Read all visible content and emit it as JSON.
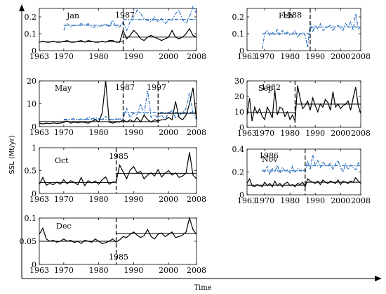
{
  "ylabel": "SSL (Mt/yr)",
  "xlabel": "Time",
  "panels": [
    {
      "month": "Jan",
      "x": [
        1963,
        1964,
        1965,
        1966,
        1967,
        1968,
        1969,
        1970,
        1971,
        1972,
        1973,
        1974,
        1975,
        1976,
        1977,
        1978,
        1979,
        1980,
        1981,
        1982,
        1983,
        1984,
        1985,
        1986,
        1987,
        1988,
        1989,
        1990,
        1991,
        1992,
        1993,
        1994,
        1995,
        1996,
        1997,
        1998,
        1999,
        2000,
        2001,
        2002,
        2003,
        2004,
        2005,
        2006,
        2007,
        2008
      ],
      "ylim": [
        0,
        0.25
      ],
      "yticks": [
        0,
        0.1,
        0.2
      ],
      "xticks": [
        1963,
        1970,
        1980,
        1990,
        2000,
        2008
      ],
      "solid": [
        0.05,
        0.055,
        0.05,
        0.05,
        0.055,
        0.05,
        0.05,
        0.055,
        0.06,
        0.05,
        0.05,
        0.055,
        0.06,
        0.05,
        0.06,
        0.055,
        0.05,
        0.05,
        0.055,
        0.05,
        0.06,
        0.06,
        0.05,
        0.05,
        0.12,
        0.07,
        0.09,
        0.12,
        0.1,
        0.07,
        0.06,
        0.08,
        0.09,
        0.08,
        0.07,
        0.06,
        0.07,
        0.08,
        0.12,
        0.08,
        0.07,
        0.08,
        0.1,
        0.13,
        0.09,
        0.08
      ],
      "solid_mean": [
        [
          1963,
          1987,
          0.052
        ],
        [
          1987,
          2008,
          0.08
        ]
      ],
      "dashdot": [
        null,
        null,
        null,
        null,
        null,
        null,
        null,
        0.12,
        0.16,
        0.14,
        0.15,
        0.15,
        0.16,
        0.15,
        0.16,
        0.14,
        0.14,
        0.14,
        0.15,
        0.16,
        0.14,
        0.18,
        0.14,
        0.14,
        0.17,
        0.12,
        0.17,
        0.2,
        0.24,
        0.22,
        0.19,
        0.18,
        0.17,
        0.2,
        0.17,
        0.19,
        0.16,
        0.18,
        0.18,
        0.22,
        0.24,
        0.18,
        0.16,
        0.2,
        0.26,
        0.22
      ],
      "dashdot_mean": [
        [
          1970,
          1987,
          0.15
        ],
        [
          1987,
          2008,
          0.185
        ]
      ],
      "breaks": [
        {
          "year": 1987,
          "label": "1987"
        }
      ]
    },
    {
      "month": "Feb",
      "x": [
        1963,
        1964,
        1965,
        1966,
        1967,
        1968,
        1969,
        1970,
        1971,
        1972,
        1973,
        1974,
        1975,
        1976,
        1977,
        1978,
        1979,
        1980,
        1981,
        1982,
        1983,
        1984,
        1985,
        1986,
        1987,
        1988,
        1989,
        1990,
        1991,
        1992,
        1993,
        1994,
        1995,
        1996,
        1997,
        1998,
        1999,
        2000,
        2001,
        2002,
        2003,
        2004,
        2005,
        2006,
        2007,
        2008
      ],
      "ylim": [
        0,
        0.25
      ],
      "yticks": [
        0,
        0.1,
        0.2
      ],
      "xticks": [
        1963,
        1970,
        1980,
        1990,
        2000,
        2008
      ],
      "solid": [],
      "solid_mean": [],
      "dashdot": [
        null,
        null,
        null,
        null,
        null,
        null,
        0.01,
        0.1,
        0.12,
        0.09,
        0.11,
        0.09,
        0.13,
        0.09,
        0.12,
        0.1,
        0.11,
        0.09,
        0.1,
        0.12,
        0.08,
        0.1,
        0.11,
        0.09,
        0.02,
        0.17,
        0.11,
        0.15,
        0.13,
        0.16,
        0.12,
        0.13,
        0.14,
        0.15,
        0.12,
        0.14,
        0.15,
        0.13,
        0.12,
        0.16,
        0.14,
        0.17,
        0.12,
        0.22,
        0.13,
        0.14
      ],
      "dashdot_mean": [
        [
          1969,
          1988,
          0.1
        ],
        [
          1988,
          2008,
          0.14
        ]
      ],
      "breaks": [
        {
          "year": 1988,
          "label": "1988"
        }
      ]
    },
    {
      "month": "May",
      "x": [
        1963,
        1964,
        1965,
        1966,
        1967,
        1968,
        1969,
        1970,
        1971,
        1972,
        1973,
        1974,
        1975,
        1976,
        1977,
        1978,
        1979,
        1980,
        1981,
        1982,
        1983,
        1984,
        1985,
        1986,
        1987,
        1988,
        1989,
        1990,
        1991,
        1992,
        1993,
        1994,
        1995,
        1996,
        1997,
        1998,
        1999,
        2000,
        2001,
        2002,
        2003,
        2004,
        2005,
        2006,
        2007,
        2008
      ],
      "ylim": [
        0,
        20
      ],
      "yticks": [
        0,
        10,
        20
      ],
      "xticks": [
        1963,
        1970,
        1980,
        1990,
        2000,
        2008
      ],
      "solid": [
        1.5,
        1.2,
        1.5,
        1.3,
        1.6,
        1.4,
        1.5,
        1.8,
        2.5,
        1.5,
        2,
        1.6,
        2,
        1.8,
        1.5,
        2.2,
        3,
        2,
        6,
        20,
        2,
        1.5,
        2,
        2,
        3,
        2,
        3,
        2,
        4,
        2,
        5,
        3,
        2,
        3,
        2.5,
        3,
        3,
        4,
        3,
        11,
        4,
        3,
        5,
        10,
        17,
        3
      ],
      "solid_mean": [
        [
          1963,
          1997,
          2.2
        ],
        [
          1997,
          2008,
          5.8
        ]
      ],
      "dashdot": [
        null,
        null,
        null,
        null,
        null,
        null,
        null,
        2.8,
        3,
        3.2,
        3.5,
        2.8,
        3.5,
        3,
        4,
        3.5,
        3.8,
        3.6,
        3,
        4.5,
        3.2,
        3,
        3.5,
        3.3,
        3.6,
        8,
        4,
        6,
        5,
        10,
        5,
        16,
        4,
        5,
        4,
        5,
        3,
        6,
        7,
        4,
        5,
        6,
        8,
        15,
        6,
        3
      ],
      "dashdot_mean": [
        [
          1970,
          1987,
          3.2
        ],
        [
          1987,
          2008,
          6.2
        ]
      ],
      "breaks": [
        {
          "year": 1987,
          "label": "1987"
        },
        {
          "year": 1997,
          "label": "1997"
        }
      ]
    },
    {
      "month": "Sep",
      "x": [
        1963,
        1964,
        1965,
        1966,
        1967,
        1968,
        1969,
        1970,
        1971,
        1972,
        1973,
        1974,
        1975,
        1976,
        1977,
        1978,
        1979,
        1980,
        1981,
        1982,
        1983,
        1984,
        1985,
        1986,
        1987,
        1988,
        1989,
        1990,
        1991,
        1992,
        1993,
        1994,
        1995,
        1996,
        1997,
        1998,
        1999,
        2000,
        2001,
        2002,
        2003,
        2004,
        2005,
        2006,
        2007,
        2008
      ],
      "ylim": [
        0,
        30
      ],
      "yticks": [
        0,
        10,
        20,
        30
      ],
      "xticks": [
        1963,
        1970,
        1980,
        1990,
        2000,
        2008
      ],
      "solid": [
        8,
        19,
        4,
        13,
        9,
        12,
        7,
        5,
        13,
        10,
        6,
        24,
        8,
        13,
        12,
        7,
        10,
        5,
        8,
        4,
        27,
        19,
        12,
        14,
        17,
        11,
        19,
        14,
        10,
        15,
        13,
        18,
        16,
        11,
        23,
        13,
        15,
        12,
        14,
        15,
        17,
        11,
        19,
        26,
        14,
        9
      ],
      "solid_mean": [
        [
          1963,
          1982,
          9.5
        ],
        [
          1982,
          2008,
          15
        ]
      ],
      "dashdot": [],
      "dashdot_mean": [],
      "breaks": [
        {
          "year": 1982,
          "label": "1982"
        }
      ]
    },
    {
      "month": "Oct",
      "x": [
        1963,
        1964,
        1965,
        1966,
        1967,
        1968,
        1969,
        1970,
        1971,
        1972,
        1973,
        1974,
        1975,
        1976,
        1977,
        1978,
        1979,
        1980,
        1981,
        1982,
        1983,
        1984,
        1985,
        1986,
        1987,
        1988,
        1989,
        1990,
        1991,
        1992,
        1993,
        1994,
        1995,
        1996,
        1997,
        1998,
        1999,
        2000,
        2001,
        2002,
        2003,
        2004,
        2005,
        2006,
        2007,
        2008
      ],
      "ylim": [
        0,
        1
      ],
      "yticks": [
        0,
        0.5,
        1
      ],
      "xticks": [
        1963,
        1970,
        1980,
        1990,
        2000,
        2008
      ],
      "solid": [
        0.2,
        0.35,
        0.18,
        0.22,
        0.19,
        0.25,
        0.2,
        0.3,
        0.21,
        0.28,
        0.24,
        0.19,
        0.35,
        0.17,
        0.28,
        0.23,
        0.27,
        0.2,
        0.3,
        0.36,
        0.2,
        0.25,
        0.25,
        0.62,
        0.47,
        0.32,
        0.51,
        0.59,
        0.45,
        0.48,
        0.32,
        0.4,
        0.45,
        0.38,
        0.52,
        0.36,
        0.44,
        0.5,
        0.4,
        0.45,
        0.35,
        0.38,
        0.45,
        0.9,
        0.4,
        0.32
      ],
      "solid_mean": [
        [
          1963,
          1985,
          0.24
        ],
        [
          1985,
          2008,
          0.44
        ]
      ],
      "dashdot": [],
      "dashdot_mean": [],
      "breaks": [
        {
          "year": 1985,
          "label": "1985"
        }
      ]
    },
    {
      "month": "Nov",
      "x": [
        1963,
        1964,
        1965,
        1966,
        1967,
        1968,
        1969,
        1970,
        1971,
        1972,
        1973,
        1974,
        1975,
        1976,
        1977,
        1978,
        1979,
        1980,
        1981,
        1982,
        1983,
        1984,
        1985,
        1986,
        1987,
        1988,
        1989,
        1990,
        1991,
        1992,
        1993,
        1994,
        1995,
        1996,
        1997,
        1998,
        1999,
        2000,
        2001,
        2002,
        2003,
        2004,
        2005,
        2006,
        2007,
        2008
      ],
      "ylim": [
        0,
        0.4
      ],
      "yticks": [
        0,
        0.2,
        0.4
      ],
      "xticks": [
        1963,
        1970,
        1980,
        1990,
        2000,
        2008
      ],
      "solid": [
        0.1,
        0.14,
        0.08,
        0.07,
        0.09,
        0.08,
        0.07,
        0.11,
        0.08,
        0.1,
        0.07,
        0.12,
        0.08,
        0.1,
        0.07,
        0.1,
        0.11,
        0.08,
        0.09,
        0.07,
        0.1,
        0.09,
        0.11,
        0.07,
        0.14,
        0.12,
        0.11,
        0.1,
        0.12,
        0.09,
        0.13,
        0.11,
        0.1,
        0.12,
        0.11,
        0.1,
        0.13,
        0.09,
        0.12,
        0.11,
        0.1,
        0.12,
        0.11,
        0.15,
        0.12,
        0.1
      ],
      "solid_mean": [
        [
          1963,
          1986,
          0.085
        ],
        [
          1986,
          2008,
          0.11
        ]
      ],
      "dashdot": [
        null,
        null,
        null,
        null,
        null,
        null,
        0.22,
        0.2,
        0.25,
        0.18,
        0.23,
        0.2,
        0.26,
        0.19,
        0.24,
        0.21,
        0.22,
        0.19,
        0.25,
        0.2,
        0.23,
        0.21,
        0.22,
        0.2,
        0.3,
        0.22,
        0.35,
        0.26,
        0.3,
        0.24,
        0.29,
        0.26,
        0.25,
        0.28,
        0.22,
        0.27,
        0.3,
        0.24,
        0.2,
        0.27,
        0.22,
        0.26,
        0.24,
        0.22,
        0.28,
        0.25
      ],
      "dashdot_mean": [
        [
          1969,
          1986,
          0.21
        ],
        [
          1986,
          2008,
          0.255
        ]
      ],
      "breaks": [
        {
          "year": 1986,
          "label": "1986"
        }
      ]
    },
    {
      "month": "Dec",
      "x": [
        1963,
        1964,
        1965,
        1966,
        1967,
        1968,
        1969,
        1970,
        1971,
        1972,
        1973,
        1974,
        1975,
        1976,
        1977,
        1978,
        1979,
        1980,
        1981,
        1982,
        1983,
        1984,
        1985,
        1986,
        1987,
        1988,
        1989,
        1990,
        1991,
        1992,
        1993,
        1994,
        1995,
        1996,
        1997,
        1998,
        1999,
        2000,
        2001,
        2002,
        2003,
        2004,
        2005,
        2006,
        2007,
        2008
      ],
      "ylim": [
        0,
        0.1
      ],
      "yticks": [
        0,
        0.05,
        0.1
      ],
      "xticks": [
        1963,
        1970,
        1980,
        1990,
        2000,
        2008
      ],
      "solid": [
        0.065,
        0.078,
        0.055,
        0.05,
        0.052,
        0.048,
        0.05,
        0.055,
        0.05,
        0.052,
        0.047,
        0.05,
        0.045,
        0.052,
        0.05,
        0.048,
        0.055,
        0.05,
        0.045,
        0.047,
        0.05,
        0.055,
        0.048,
        0.053,
        0.06,
        0.058,
        0.065,
        0.07,
        0.063,
        0.058,
        0.062,
        0.075,
        0.06,
        0.055,
        0.065,
        0.068,
        0.06,
        0.065,
        0.07,
        0.058,
        0.06,
        0.063,
        0.07,
        0.1,
        0.075,
        0.065
      ],
      "solid_mean": [
        [
          1963,
          1985,
          0.05
        ],
        [
          1985,
          2008,
          0.067
        ]
      ],
      "dashdot": [],
      "dashdot_mean": [],
      "breaks": [
        {
          "year": 1985,
          "label": "1985"
        }
      ]
    }
  ],
  "colors": {
    "solid": "#000000",
    "dashdot": "#2a6fbd"
  }
}
